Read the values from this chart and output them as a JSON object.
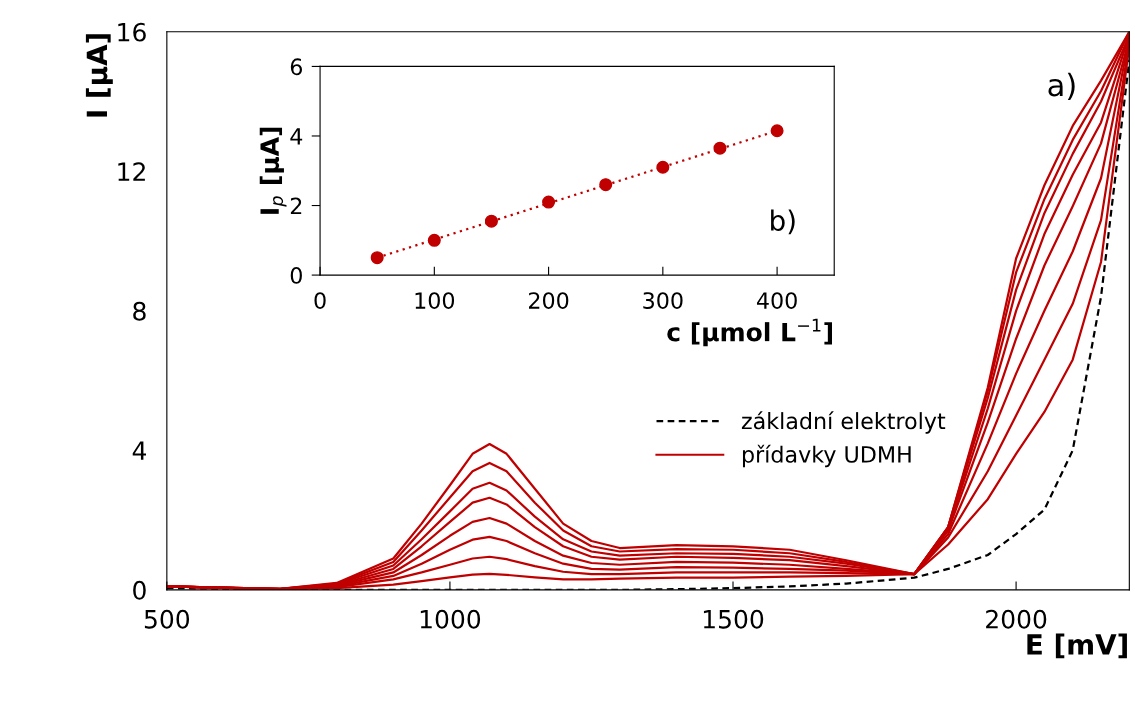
{
  "chart_data": [
    {
      "type": "line",
      "xlabel": "E [mV]",
      "ylabel": "I [µA]",
      "xlim": [
        500,
        2200
      ],
      "ylim": [
        0,
        16
      ],
      "xticks": [
        500,
        1000,
        1500,
        2000
      ],
      "yticks": [
        0,
        4,
        8,
        12,
        16
      ],
      "grid": false,
      "legend": "right",
      "annotations": [
        "a)"
      ],
      "x": [
        500,
        700,
        800,
        900,
        950,
        1000,
        1040,
        1070,
        1100,
        1150,
        1200,
        1250,
        1300,
        1400,
        1500,
        1600,
        1700,
        1820,
        1880,
        1950,
        2000,
        2050,
        2100,
        2150,
        2200
      ],
      "series": [
        {
          "name": "základní elektrolyt",
          "color": "#000000",
          "line_style": "dashed",
          "values": [
            0.05,
            0,
            0,
            0,
            0,
            0,
            0,
            0,
            0,
            0,
            0,
            0,
            0,
            0.02,
            0.05,
            0.1,
            0.18,
            0.35,
            0.6,
            1.0,
            1.6,
            2.3,
            4.0,
            8.4,
            15.2
          ]
        },
        {
          "name": "přídavky UDMH",
          "color": "#c00000",
          "line_style": "solid",
          "values": [
            0.1,
            0.02,
            0.05,
            0.15,
            0.25,
            0.36,
            0.44,
            0.46,
            0.43,
            0.36,
            0.3,
            0.3,
            0.32,
            0.35,
            0.35,
            0.38,
            0.4,
            0.45,
            1.3,
            2.6,
            3.9,
            5.1,
            6.6,
            9.4,
            15.6
          ]
        },
        {
          "color": "#c00000",
          "line_style": "solid",
          "values": [
            0.1,
            0.02,
            0.08,
            0.3,
            0.5,
            0.72,
            0.9,
            0.95,
            0.88,
            0.68,
            0.52,
            0.45,
            0.45,
            0.5,
            0.5,
            0.5,
            0.48,
            0.45,
            1.5,
            3.4,
            5.0,
            6.6,
            8.2,
            10.6,
            15.7
          ]
        },
        {
          "color": "#c00000",
          "line_style": "solid",
          "values": [
            0.1,
            0.02,
            0.1,
            0.4,
            0.75,
            1.15,
            1.44,
            1.52,
            1.4,
            1.05,
            0.75,
            0.6,
            0.58,
            0.65,
            0.64,
            0.6,
            0.55,
            0.45,
            1.6,
            4.2,
            6.2,
            8.0,
            9.7,
            11.8,
            15.8
          ]
        },
        {
          "color": "#c00000",
          "line_style": "solid",
          "values": [
            0.1,
            0.02,
            0.12,
            0.5,
            1.0,
            1.55,
            1.95,
            2.06,
            1.9,
            1.4,
            0.98,
            0.77,
            0.72,
            0.8,
            0.78,
            0.72,
            0.6,
            0.45,
            1.7,
            4.8,
            7.2,
            9.3,
            11.0,
            12.8,
            15.8
          ]
        },
        {
          "color": "#c00000",
          "line_style": "solid",
          "values": [
            0.1,
            0.03,
            0.14,
            0.6,
            1.25,
            1.95,
            2.5,
            2.64,
            2.45,
            1.8,
            1.25,
            0.95,
            0.87,
            0.95,
            0.92,
            0.85,
            0.68,
            0.45,
            1.75,
            5.2,
            8.0,
            10.2,
            11.9,
            13.4,
            15.9
          ]
        },
        {
          "color": "#c00000",
          "line_style": "solid",
          "values": [
            0.1,
            0.03,
            0.16,
            0.7,
            1.45,
            2.25,
            2.9,
            3.07,
            2.85,
            2.1,
            1.45,
            1.1,
            0.98,
            1.05,
            1.03,
            0.95,
            0.75,
            0.45,
            1.8,
            5.5,
            8.6,
            10.8,
            12.5,
            14.0,
            15.9
          ]
        },
        {
          "color": "#c00000",
          "line_style": "solid",
          "values": [
            0.1,
            0.03,
            0.18,
            0.8,
            1.7,
            2.65,
            3.4,
            3.64,
            3.4,
            2.5,
            1.7,
            1.25,
            1.1,
            1.17,
            1.15,
            1.05,
            0.8,
            0.45,
            1.8,
            5.7,
            9.1,
            11.2,
            12.9,
            14.3,
            16.0
          ]
        },
        {
          "color": "#c00000",
          "line_style": "solid",
          "values": [
            0.1,
            0.03,
            0.2,
            0.9,
            1.9,
            3.0,
            3.9,
            4.18,
            3.9,
            2.9,
            1.9,
            1.4,
            1.2,
            1.28,
            1.25,
            1.15,
            0.85,
            0.45,
            1.8,
            5.8,
            9.5,
            11.6,
            13.3,
            14.6,
            16.0
          ]
        }
      ]
    },
    {
      "type": "scatter",
      "xlabel": "c [µmol L$^{−1}$]",
      "ylabel": "I$_{p}$ [µA]",
      "xlim": [
        0,
        450
      ],
      "ylim": [
        0,
        6
      ],
      "xticks": [
        0,
        100,
        200,
        300,
        400
      ],
      "yticks": [
        0,
        2,
        4,
        6
      ],
      "grid": false,
      "annotations": [
        "b)"
      ],
      "series": [
        {
          "type": "line",
          "color": "#c00000",
          "line_style": "dotted",
          "x": [
            50,
            400
          ],
          "values": [
            0.5,
            4.15
          ]
        },
        {
          "type": "scatter",
          "color": "#c00000",
          "marker": "circle",
          "x": [
            50,
            100,
            150,
            200,
            250,
            300,
            350,
            400
          ],
          "values": [
            0.5,
            1.0,
            1.55,
            2.1,
            2.6,
            3.1,
            3.65,
            4.15
          ]
        }
      ]
    }
  ]
}
